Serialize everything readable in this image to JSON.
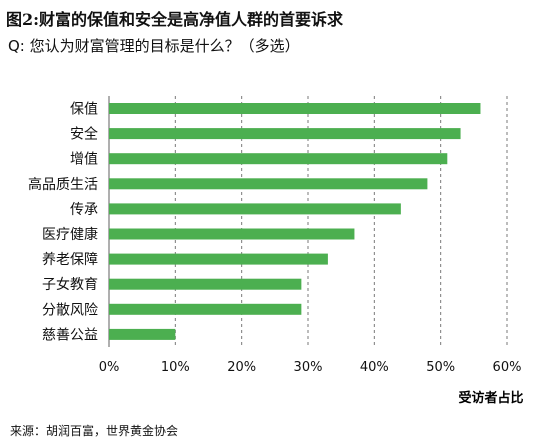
{
  "title": "图2:财富的保值和安全是高净值人群的首要诉求",
  "subtitle": "Q:  您认为财富管理的目标是什么？（多选）",
  "source": "来源：胡润百富，世界黄金协会",
  "colors": {
    "bar": "#4caf50",
    "grid": "#7a7a7a",
    "text": "#111111"
  },
  "chart_data": {
    "type": "bar",
    "orientation": "horizontal",
    "categories": [
      "保值",
      "安全",
      "增值",
      "高品质生活",
      "传承",
      "医疗健康",
      "养老保障",
      "子女教育",
      "分散风险",
      "慈善公益"
    ],
    "values": [
      56,
      53,
      51,
      48,
      44,
      37,
      33,
      29,
      29,
      10
    ],
    "xlim": [
      0,
      60
    ],
    "xticks": [
      0,
      10,
      20,
      30,
      40,
      50,
      60
    ],
    "tick_labels": [
      "0%",
      "10%",
      "20%",
      "30%",
      "40%",
      "50%",
      "60%"
    ],
    "xlabel": "受访者占比",
    "grid": "vertical dashed",
    "legend": "none"
  }
}
